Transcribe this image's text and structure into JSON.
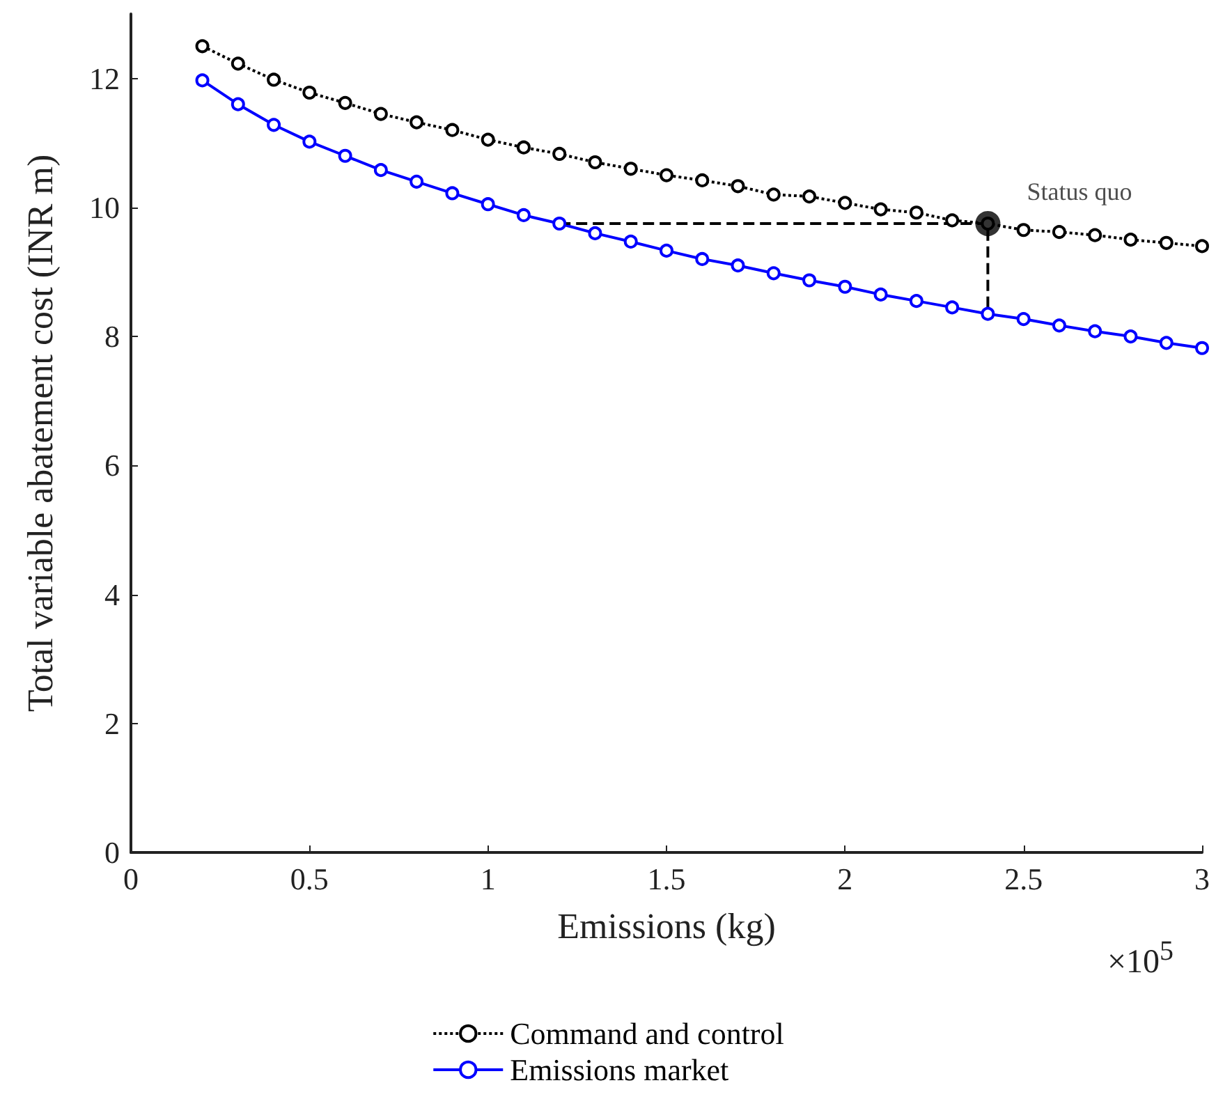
{
  "chart_data": {
    "type": "line",
    "xlabel": "Emissions (kg)",
    "ylabel": "Total variable abatement cost (INR m)",
    "xlim": [
      0,
      3
    ],
    "xticks": [
      0,
      0.5,
      1,
      1.5,
      2,
      2.5,
      3
    ],
    "ylim": [
      0,
      13
    ],
    "yticks": [
      0,
      2,
      4,
      6,
      8,
      10,
      12
    ],
    "grid": false,
    "legend": "bottom",
    "marker": "circle",
    "annotations": [
      "×10$^{5}$",
      {
        "text": "Status quo",
        "x": 2.4,
        "y": 9.75
      }
    ],
    "series": [
      {
        "name": "Command and control",
        "color": "#000000",
        "line_style": "dotted",
        "x": [
          0.2,
          0.3,
          0.4,
          0.5,
          0.6,
          0.7,
          0.8,
          0.9,
          1.0,
          1.1,
          1.2,
          1.3,
          1.4,
          1.5,
          1.6,
          1.7,
          1.8,
          1.9,
          2.0,
          2.1,
          2.2,
          2.3,
          2.4,
          2.5,
          2.6,
          2.7,
          2.8,
          2.9,
          3.0
        ],
        "values": [
          12.5,
          12.23,
          11.98,
          11.78,
          11.62,
          11.45,
          11.32,
          11.2,
          11.05,
          10.93,
          10.83,
          10.7,
          10.6,
          10.5,
          10.42,
          10.33,
          10.2,
          10.17,
          10.07,
          9.97,
          9.92,
          9.8,
          9.75,
          9.65,
          9.62,
          9.57,
          9.5,
          9.45,
          9.4
        ]
      },
      {
        "name": "Emissions market",
        "color": "#0000ff",
        "line_style": "solid",
        "x": [
          0.2,
          0.3,
          0.4,
          0.5,
          0.6,
          0.7,
          0.8,
          0.9,
          1.0,
          1.1,
          1.2,
          1.3,
          1.4,
          1.5,
          1.6,
          1.7,
          1.8,
          1.9,
          2.0,
          2.1,
          2.2,
          2.3,
          2.4,
          2.5,
          2.6,
          2.7,
          2.8,
          2.9,
          3.0
        ],
        "values": [
          11.97,
          11.6,
          11.28,
          11.02,
          10.8,
          10.58,
          10.4,
          10.22,
          10.05,
          9.88,
          9.75,
          9.6,
          9.47,
          9.33,
          9.2,
          9.1,
          8.98,
          8.87,
          8.77,
          8.65,
          8.55,
          8.45,
          8.35,
          8.27,
          8.17,
          8.08,
          8.0,
          7.9,
          7.82
        ]
      },
      {
        "type": "line",
        "color": "#000000",
        "line_style": "dashed",
        "marker": "none",
        "x": [
          1.2,
          2.4,
          2.4
        ],
        "values": [
          9.75,
          9.75,
          8.35
        ]
      },
      {
        "type": "scatter",
        "color": "#000000",
        "marker": "circle",
        "x": [
          2.4
        ],
        "values": [
          9.75
        ]
      }
    ]
  }
}
